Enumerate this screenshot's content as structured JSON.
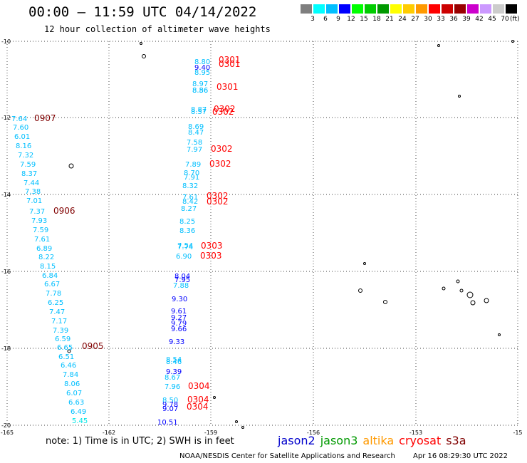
{
  "header": {
    "title": "00:00 – 11:59 UTC 04/14/2022",
    "subtitle": "12 hour collection of altimeter wave heights"
  },
  "colorbar": {
    "colors": [
      "#7f7f7f",
      "#00ffff",
      "#00bfff",
      "#0000ff",
      "#00ff00",
      "#00cc00",
      "#009900",
      "#ffff00",
      "#ffcc00",
      "#ff9900",
      "#ff0000",
      "#cc0000",
      "#990000",
      "#cc00cc",
      "#cc99ff",
      "#cccccc",
      "#000000"
    ],
    "labels": [
      "3",
      "6",
      "9",
      "12",
      "15",
      "18",
      "21",
      "24",
      "27",
      "30",
      "33",
      "36",
      "39",
      "42",
      "45",
      "70"
    ],
    "unit": "(ft)"
  },
  "axes": {
    "x_ticks": [
      "-165",
      "-162",
      "-159",
      "-156",
      "-153",
      "-15"
    ],
    "y_ticks": [
      "-10",
      "-12",
      "-14",
      "-16",
      "-18",
      "-20"
    ]
  },
  "tracks": [
    {
      "id": "0907",
      "label_color": "#800000",
      "values": [
        {
          "t": "7.64",
          "c": "#00bfff"
        },
        {
          "t": "7.60",
          "c": "#00bfff"
        },
        {
          "t": "6.01",
          "c": "#00bfff"
        },
        {
          "t": "8.16",
          "c": "#00bfff"
        },
        {
          "t": "7.32",
          "c": "#00bfff"
        },
        {
          "t": "7.59",
          "c": "#00bfff"
        },
        {
          "t": "8.37",
          "c": "#00bfff"
        },
        {
          "t": "7.44",
          "c": "#00bfff"
        },
        {
          "t": "7.38",
          "c": "#00bfff"
        },
        {
          "t": "7.01",
          "c": "#00bfff"
        }
      ]
    },
    {
      "id": "0906",
      "label_color": "#800000",
      "values": [
        {
          "t": "7.37",
          "c": "#00bfff"
        },
        {
          "t": "7.93",
          "c": "#00bfff"
        },
        {
          "t": "7.59",
          "c": "#00bfff"
        },
        {
          "t": "7.61",
          "c": "#00bfff"
        },
        {
          "t": "6.89",
          "c": "#00bfff"
        },
        {
          "t": "8.22",
          "c": "#00bfff"
        },
        {
          "t": "8.15",
          "c": "#00bfff"
        },
        {
          "t": "6.84",
          "c": "#00bfff"
        },
        {
          "t": "6.67",
          "c": "#00bfff"
        },
        {
          "t": "7.78",
          "c": "#00bfff"
        },
        {
          "t": "6.25",
          "c": "#00bfff"
        },
        {
          "t": "7.47",
          "c": "#00bfff"
        },
        {
          "t": "7.17",
          "c": "#00bfff"
        },
        {
          "t": "7.39",
          "c": "#00bfff"
        },
        {
          "t": "6.59",
          "c": "#00bfff"
        },
        {
          "t": "6.65",
          "c": "#00bfff"
        }
      ]
    },
    {
      "id": "0905",
      "label_color": "#800000",
      "values": [
        {
          "t": "6.51",
          "c": "#00bfff"
        },
        {
          "t": "6.46",
          "c": "#00bfff"
        },
        {
          "t": "7.84",
          "c": "#00bfff"
        },
        {
          "t": "8.06",
          "c": "#00bfff"
        },
        {
          "t": "6.07",
          "c": "#00bfff"
        },
        {
          "t": "6.63",
          "c": "#00bfff"
        },
        {
          "t": "6.49",
          "c": "#00bfff"
        },
        {
          "t": "5.45",
          "c": "#00e5e5"
        }
      ]
    },
    {
      "id": "0301",
      "label_color": "#ff0000",
      "values": [
        {
          "t": "8.80",
          "c": "#00bfff"
        },
        {
          "t": "9.40",
          "c": "#0000ff"
        },
        {
          "t": "8.95",
          "c": "#00bfff"
        },
        {
          "t": "8.97",
          "c": "#00bfff"
        },
        {
          "t": "8.56",
          "c": "#00bfff"
        },
        {
          "t": "8.86",
          "c": "#00bfff"
        }
      ]
    },
    {
      "id": "0302",
      "label_color": "#ff0000",
      "values": [
        {
          "t": "8.87",
          "c": "#00bfff"
        },
        {
          "t": "8.57",
          "c": "#00bfff"
        },
        {
          "t": "8.69",
          "c": "#00bfff"
        },
        {
          "t": "8.47",
          "c": "#00bfff"
        },
        {
          "t": "7.58",
          "c": "#00bfff"
        },
        {
          "t": "7.97",
          "c": "#00bfff"
        },
        {
          "t": "7.89",
          "c": "#00bfff"
        },
        {
          "t": "8.70",
          "c": "#00bfff"
        },
        {
          "t": "7.91",
          "c": "#00bfff"
        },
        {
          "t": "8.32",
          "c": "#00bfff"
        },
        {
          "t": "7.61",
          "c": "#00bfff"
        },
        {
          "t": "8.42",
          "c": "#00bfff"
        },
        {
          "t": "8.27",
          "c": "#00bfff"
        }
      ]
    },
    {
      "id": "0303",
      "label_color": "#ff0000",
      "values": [
        {
          "t": "8.25",
          "c": "#00bfff"
        },
        {
          "t": "8.36",
          "c": "#00bfff"
        },
        {
          "t": "7.54",
          "c": "#00bfff"
        },
        {
          "t": "7.74",
          "c": "#00bfff"
        },
        {
          "t": "6.90",
          "c": "#00bfff"
        },
        {
          "t": "8.04",
          "c": "#0000ff"
        },
        {
          "t": "7.95",
          "c": "#0000ff"
        },
        {
          "t": "7.88",
          "c": "#00bfff"
        },
        {
          "t": "9.30",
          "c": "#0000ff"
        },
        {
          "t": "9.61",
          "c": "#0000ff"
        },
        {
          "t": "9.27",
          "c": "#0000ff"
        },
        {
          "t": "9.79",
          "c": "#0000ff"
        },
        {
          "t": "9.66",
          "c": "#0000ff"
        },
        {
          "t": "9.33",
          "c": "#0000ff"
        }
      ]
    },
    {
      "id": "0304",
      "label_color": "#ff0000",
      "values": [
        {
          "t": "8.54",
          "c": "#00bfff"
        },
        {
          "t": "8.46",
          "c": "#00bfff"
        },
        {
          "t": "9.39",
          "c": "#0000ff"
        },
        {
          "t": "8.67",
          "c": "#00bfff"
        },
        {
          "t": "7.96",
          "c": "#00bfff"
        },
        {
          "t": "8.50",
          "c": "#00bfff"
        },
        {
          "t": "9.78",
          "c": "#0000ff"
        },
        {
          "t": "9.07",
          "c": "#0000ff"
        },
        {
          "t": "10.51",
          "c": "#0000ff"
        }
      ]
    }
  ],
  "footer": {
    "note": "note:  1) Time is in UTC;  2) SWH is in feet",
    "credit": "NOAA/NESDIS Center for Satellite Applications and Research",
    "timestamp": "Apr 16 08:29:30 UTC 2022"
  },
  "satellites": [
    {
      "name": "jason2",
      "color": "#0000cc"
    },
    {
      "name": "jason3",
      "color": "#009900"
    },
    {
      "name": "altika",
      "color": "#ff9900"
    },
    {
      "name": "cryosat",
      "color": "#ff0000"
    },
    {
      "name": "s3a",
      "color": "#800000"
    }
  ]
}
